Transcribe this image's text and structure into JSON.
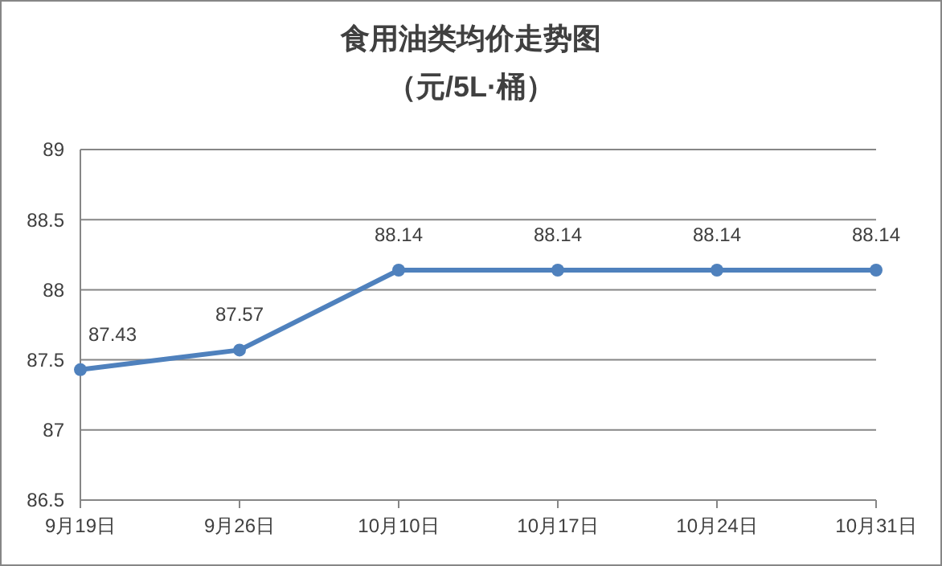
{
  "chart_data": {
    "type": "line",
    "title": "食用油类均价走势图",
    "subtitle": "（元/5L·桶）",
    "categories": [
      "9月19日",
      "9月26日",
      "10月10日",
      "10月17日",
      "10月24日",
      "10月31日"
    ],
    "series": [
      {
        "color": "#4f81bd",
        "values": [
          87.43,
          87.57,
          88.14,
          88.14,
          88.14,
          88.14
        ]
      }
    ],
    "ylim": [
      86.5,
      89
    ],
    "yticks": [
      86.5,
      87,
      87.5,
      88,
      88.5,
      89
    ],
    "grid": "y",
    "marker": "circle",
    "line_style": "solid",
    "data_labels": true
  }
}
